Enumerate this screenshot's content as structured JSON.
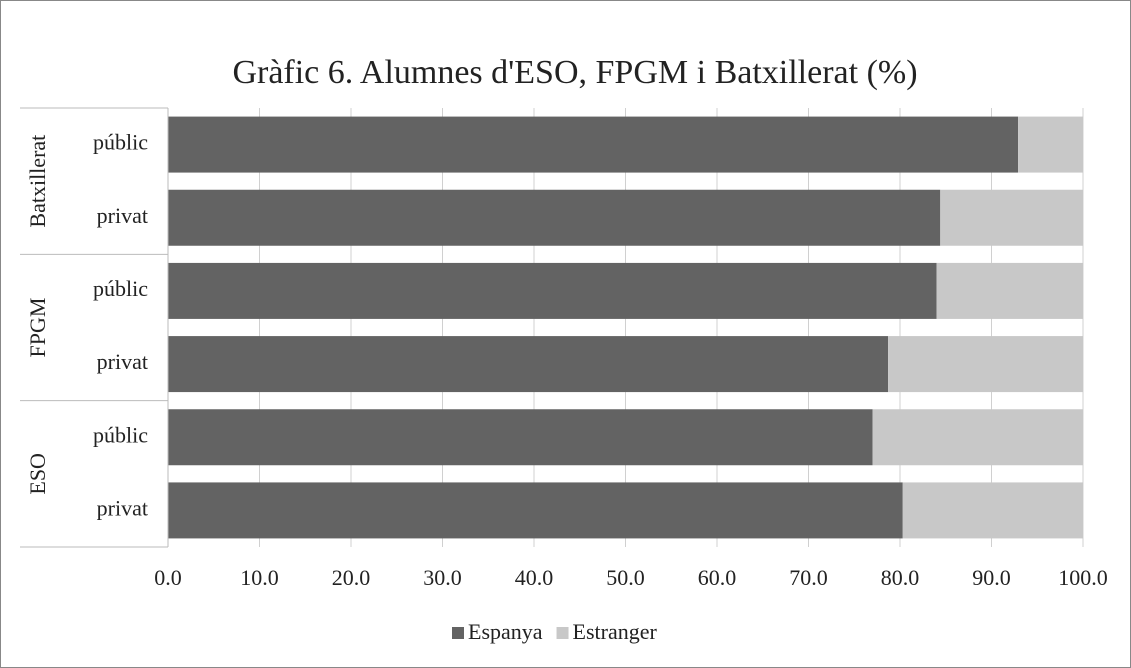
{
  "chart_data": {
    "type": "stacked-barh",
    "title": "Gràfic 6. Alumnes d'ESO, FPGM i Batxillerat (%)",
    "groups": [
      "Batxillerat",
      "FPGM",
      "ESO"
    ],
    "categories": [
      "públic",
      "privat",
      "públic",
      "privat",
      "públic",
      "privat"
    ],
    "series": [
      {
        "name": "Espanya",
        "color": "#636363",
        "values": [
          92.9,
          84.4,
          84.0,
          78.7,
          77.0,
          80.3
        ]
      },
      {
        "name": "Estranger",
        "color": "#c8c8c8",
        "values": [
          7.1,
          15.6,
          16.0,
          21.3,
          23.0,
          19.7
        ]
      }
    ],
    "xlim": [
      0,
      100
    ],
    "xticks": [
      {
        "value": 0,
        "label": "0.0"
      },
      {
        "value": 10,
        "label": "10.0"
      },
      {
        "value": 20,
        "label": "20.0"
      },
      {
        "value": 30,
        "label": "30.0"
      },
      {
        "value": 40,
        "label": "40.0"
      },
      {
        "value": 50,
        "label": "50.0"
      },
      {
        "value": 60,
        "label": "60.0"
      },
      {
        "value": 70,
        "label": "70.0"
      },
      {
        "value": 80,
        "label": "80.0"
      },
      {
        "value": 90,
        "label": "90.0"
      },
      {
        "value": 100,
        "label": "100.0"
      }
    ],
    "grid": true,
    "legend": "bottom"
  }
}
